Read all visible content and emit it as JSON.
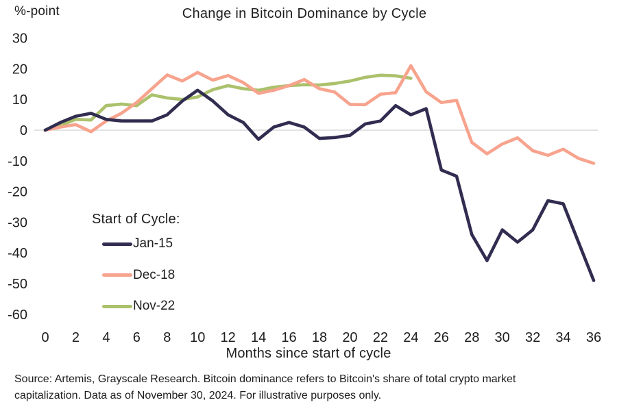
{
  "header": {
    "y_axis_unit": "%-point",
    "title": "Change in Bitcoin Dominance by Cycle"
  },
  "chart_data": {
    "type": "line",
    "title": "Change in Bitcoin Dominance by Cycle",
    "xlabel": "Months since start of cycle",
    "ylabel": "%-point",
    "x_range": [
      0,
      36
    ],
    "y_range": [
      -60,
      30
    ],
    "x_ticks": [
      0,
      2,
      4,
      6,
      8,
      10,
      12,
      14,
      16,
      18,
      20,
      22,
      24,
      26,
      28,
      30,
      32,
      34,
      36
    ],
    "y_ticks": [
      30,
      20,
      10,
      0,
      -10,
      -20,
      -30,
      -40,
      -50,
      -60
    ],
    "grid": "zero-line-only",
    "legend": {
      "title": "Start of Cycle:",
      "position": "inside-left"
    },
    "series": [
      {
        "name": "Jan-15",
        "color": "#312d50",
        "x": [
          0,
          1,
          2,
          3,
          4,
          5,
          6,
          7,
          8,
          9,
          10,
          11,
          12,
          13,
          14,
          15,
          16,
          17,
          18,
          19,
          20,
          21,
          22,
          23,
          24,
          25,
          26,
          27,
          28,
          29,
          30,
          31,
          32,
          33,
          34,
          35,
          36
        ],
        "values": [
          0,
          2.5,
          4.5,
          5.5,
          3.5,
          3,
          3,
          3,
          5,
          9.5,
          13,
          9.5,
          5,
          2.5,
          -3,
          1,
          2.5,
          1,
          -2.7,
          -2.4,
          -1.7,
          2,
          3,
          8,
          5,
          7,
          -13,
          -15,
          -34,
          -42.5,
          -32.5,
          -36.5,
          -32.5,
          -23,
          -24,
          -36.5,
          -49
        ]
      },
      {
        "name": "Dec-18",
        "color": "#f7a38d",
        "x": [
          0,
          1,
          2,
          3,
          4,
          5,
          6,
          7,
          8,
          9,
          10,
          11,
          12,
          13,
          14,
          15,
          16,
          17,
          18,
          19,
          20,
          21,
          22,
          23,
          24,
          25,
          26,
          27,
          28,
          29,
          30,
          31,
          32,
          33,
          34,
          35,
          36
        ],
        "values": [
          0,
          1,
          1.8,
          -0.5,
          3,
          5.5,
          9,
          13.5,
          18,
          16,
          18.8,
          16.3,
          17.8,
          15.5,
          12,
          13,
          14.5,
          16.5,
          13.5,
          12.4,
          8.4,
          8.3,
          11.7,
          12.2,
          21,
          12.5,
          9,
          9.7,
          -4,
          -7.7,
          -4.5,
          -2.5,
          -6.7,
          -8.2,
          -6.2,
          -9.2,
          -10.8
        ]
      },
      {
        "name": "Nov-22",
        "color": "#abc16c",
        "x": [
          0,
          1,
          2,
          3,
          4,
          5,
          6,
          7,
          8,
          9,
          10,
          11,
          12,
          13,
          14,
          15,
          16,
          17,
          18,
          19,
          20,
          21,
          22,
          23,
          24
        ],
        "values": [
          0,
          1.5,
          3.5,
          3.3,
          8,
          8.5,
          8,
          11.5,
          10.5,
          10,
          10.8,
          13.2,
          14.5,
          13.5,
          13,
          14,
          14.5,
          14.8,
          14.7,
          15.2,
          16,
          17.2,
          17.9,
          17.7,
          16.9
        ]
      }
    ],
    "style": {
      "line_width": 4.6,
      "zero_gridline_color": "#d8d8d8",
      "text_color": "#1e1e1e"
    }
  },
  "footer": {
    "lines": [
      "Source: Artemis, Grayscale Research. Bitcoin dominance refers to Bitcoin's share of total crypto market",
      "capitalization. Data as of November 30, 2024. For illustrative purposes only."
    ]
  }
}
